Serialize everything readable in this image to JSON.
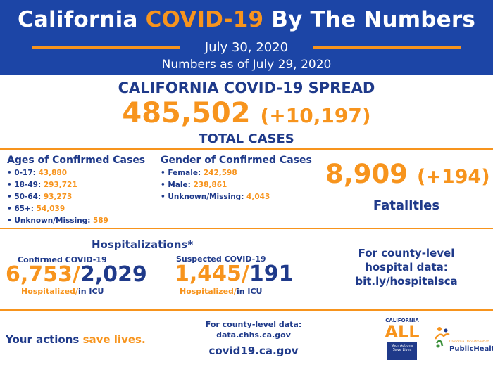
{
  "header": {
    "title_prefix": "California",
    "title_highlight": "COVID-19",
    "title_suffix": "By The Numbers",
    "date": "July 30, 2020",
    "numbers_as_of": "Numbers as of July 29, 2020"
  },
  "spread": {
    "title": "CALIFORNIA COVID-19 SPREAD",
    "total": "485,502",
    "increase": "(+10,197)",
    "label": "TOTAL CASES"
  },
  "ages": {
    "title": "Ages of Confirmed Cases",
    "items": [
      {
        "label": "• 0-17: ",
        "value": "43,880"
      },
      {
        "label": "• 18-49: ",
        "value": "293,721"
      },
      {
        "label": "• 50-64: ",
        "value": "93,273"
      },
      {
        "label": "• 65+: ",
        "value": "54,039"
      },
      {
        "label": "• Unknown/Missing: ",
        "value": "589"
      }
    ]
  },
  "gender": {
    "title": "Gender of Confirmed Cases",
    "items": [
      {
        "label": "• Female: ",
        "value": "242,598"
      },
      {
        "label": "• Male: ",
        "value": "238,861"
      },
      {
        "label": "• Unknown/Missing: ",
        "value": "4,043"
      }
    ]
  },
  "fatalities": {
    "total": "8,909",
    "increase": "(+194)",
    "label": "Fatalities"
  },
  "hospitalizations": {
    "title": "Hospitalizations*",
    "confirmed": {
      "subtitle": "Confirmed COVID-19",
      "hospitalized": "6,753",
      "sep": "/",
      "icu": "2,029",
      "caption_a": "Hospitalized/",
      "caption_b": "in ICU"
    },
    "suspected": {
      "subtitle": "Suspected COVID-19",
      "hospitalized": "1,445",
      "sep": "/",
      "icu": "191",
      "caption_a": "Hospitalized/",
      "caption_b": "in ICU"
    },
    "county_line1": "For county-level",
    "county_line2": "hospital data:",
    "county_link": "bit.ly/hospitalsca"
  },
  "footer": {
    "slogan_a": "Your actions ",
    "slogan_b": "save lives.",
    "county_line1": "For county-level data:",
    "county_line2": "data.chhs.ca.gov",
    "site": "covid19.ca.gov"
  },
  "logos": {
    "ca_all_top": "CALIFORNIA",
    "ca_all_main": "ALL",
    "ca_all_box": "Your Actions Save Lives",
    "cdph_small": "California Department of",
    "cdph_main": "PublicHealth"
  },
  "colors": {
    "navy": "#1f3a8a",
    "header_blue": "#1c45a6",
    "orange": "#f7941d"
  }
}
